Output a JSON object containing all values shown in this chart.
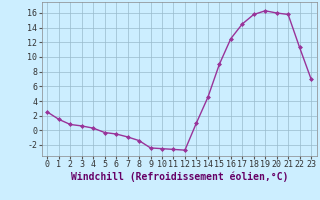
{
  "x": [
    0,
    1,
    2,
    3,
    4,
    5,
    6,
    7,
    8,
    9,
    10,
    11,
    12,
    13,
    14,
    15,
    16,
    17,
    18,
    19,
    20,
    21,
    22,
    23
  ],
  "y": [
    2.5,
    1.5,
    0.8,
    0.6,
    0.3,
    -0.3,
    -0.5,
    -0.9,
    -1.4,
    -2.4,
    -2.5,
    -2.6,
    -2.7,
    1.0,
    4.5,
    9.0,
    12.5,
    14.5,
    15.8,
    16.3,
    16.0,
    15.8,
    11.3,
    7.0
  ],
  "line_color": "#993399",
  "marker": "D",
  "marker_size": 2.0,
  "bg_color": "#cceeff",
  "grid_color": "#99bbcc",
  "xlabel": "Windchill (Refroidissement éolien,°C)",
  "xlim": [
    -0.5,
    23.5
  ],
  "ylim": [
    -3.5,
    17.5
  ],
  "yticks": [
    -2,
    0,
    2,
    4,
    6,
    8,
    10,
    12,
    14,
    16
  ],
  "xticks": [
    0,
    1,
    2,
    3,
    4,
    5,
    6,
    7,
    8,
    9,
    10,
    11,
    12,
    13,
    14,
    15,
    16,
    17,
    18,
    19,
    20,
    21,
    22,
    23
  ],
  "xlabel_fontsize": 7,
  "tick_fontsize": 6,
  "line_width": 1.0
}
